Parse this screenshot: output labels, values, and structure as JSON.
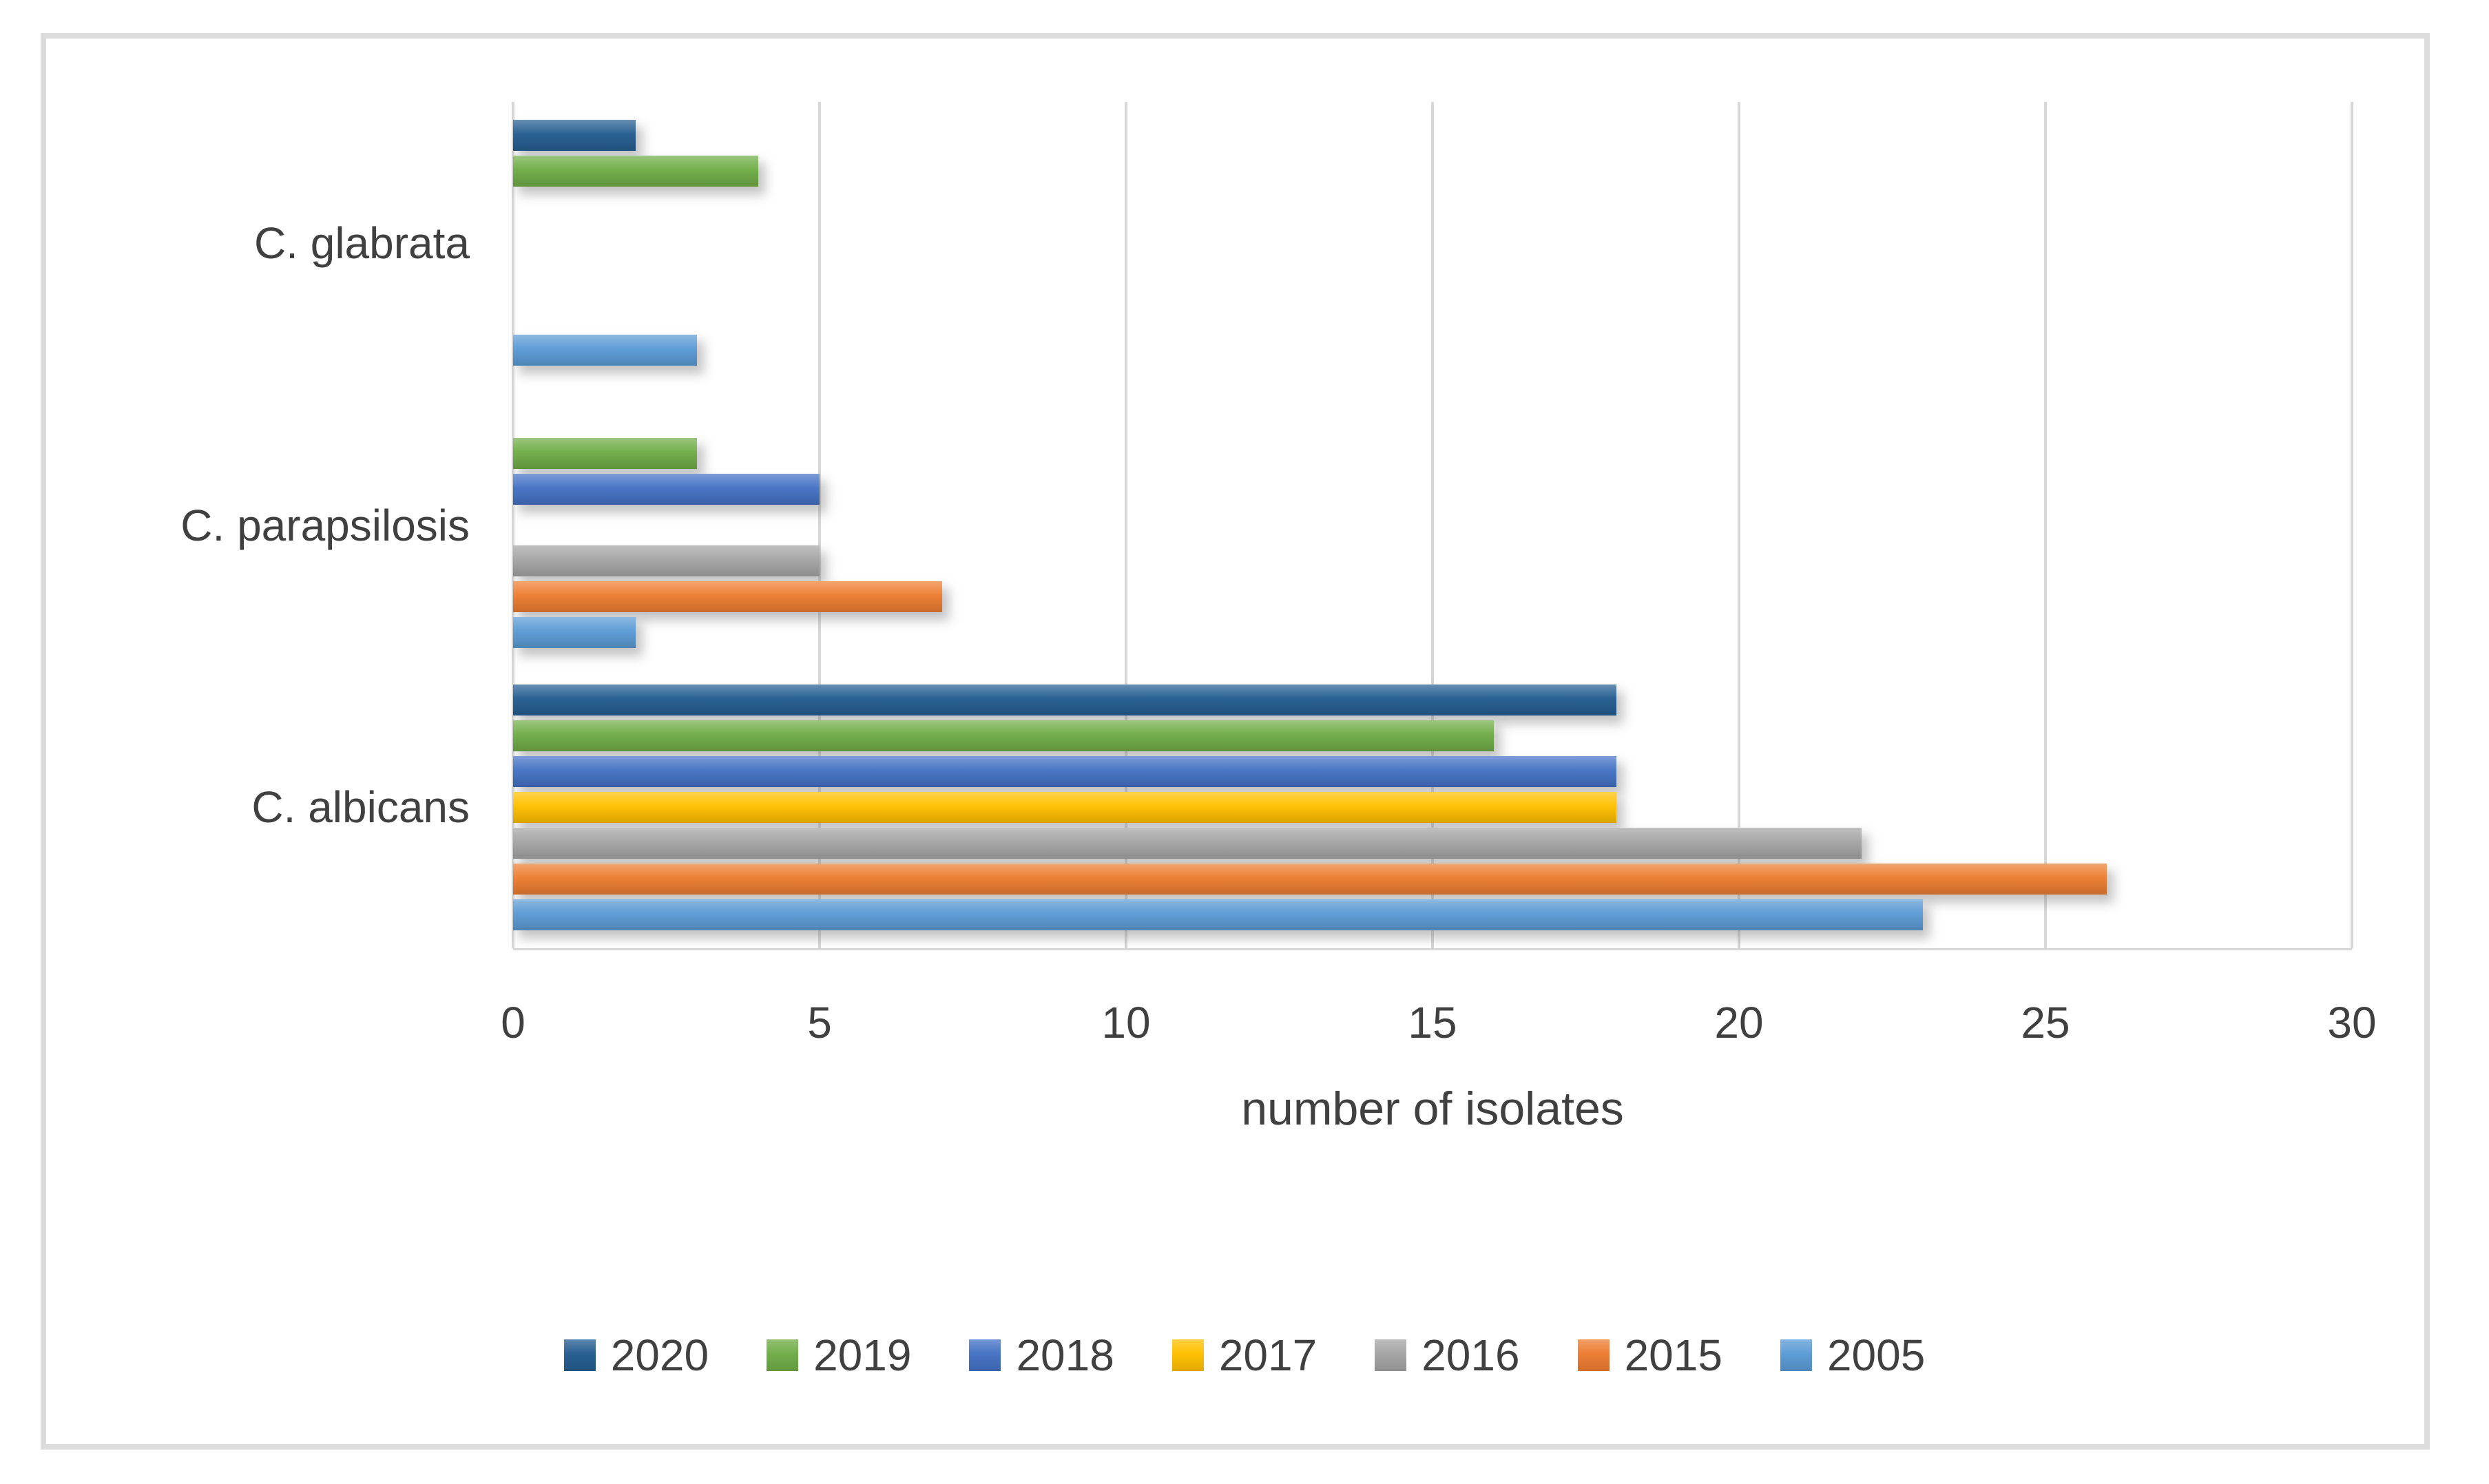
{
  "chart_data": {
    "type": "bar",
    "orientation": "horizontal",
    "xlabel": "number of isolates",
    "categories": [
      "C. glabrata",
      "C. parapsilosis",
      "C. albicans"
    ],
    "series": [
      {
        "name": "2020",
        "color": "#255E91",
        "values": [
          2,
          0,
          18
        ]
      },
      {
        "name": "2019",
        "color": "#70AD47",
        "values": [
          4,
          3,
          16
        ]
      },
      {
        "name": "2018",
        "color": "#4472C4",
        "values": [
          0,
          5,
          18
        ]
      },
      {
        "name": "2017",
        "color": "#FFC000",
        "values": [
          0,
          0,
          18
        ]
      },
      {
        "name": "2016",
        "color": "#A5A5A5",
        "values": [
          0,
          5,
          22
        ]
      },
      {
        "name": "2015",
        "color": "#ED7D31",
        "values": [
          0,
          7,
          26
        ]
      },
      {
        "name": "2005",
        "color": "#5B9BD5",
        "values": [
          3,
          2,
          23
        ]
      }
    ],
    "x_ticks": [
      "0",
      "5",
      "10",
      "15",
      "20",
      "25",
      "30"
    ],
    "xlim": [
      0,
      30
    ],
    "grid": true,
    "legend_position": "bottom",
    "style": {
      "text_color": "#404040",
      "grid_color": "#D7D7D7",
      "frame_color": "#DCDCDC"
    }
  }
}
